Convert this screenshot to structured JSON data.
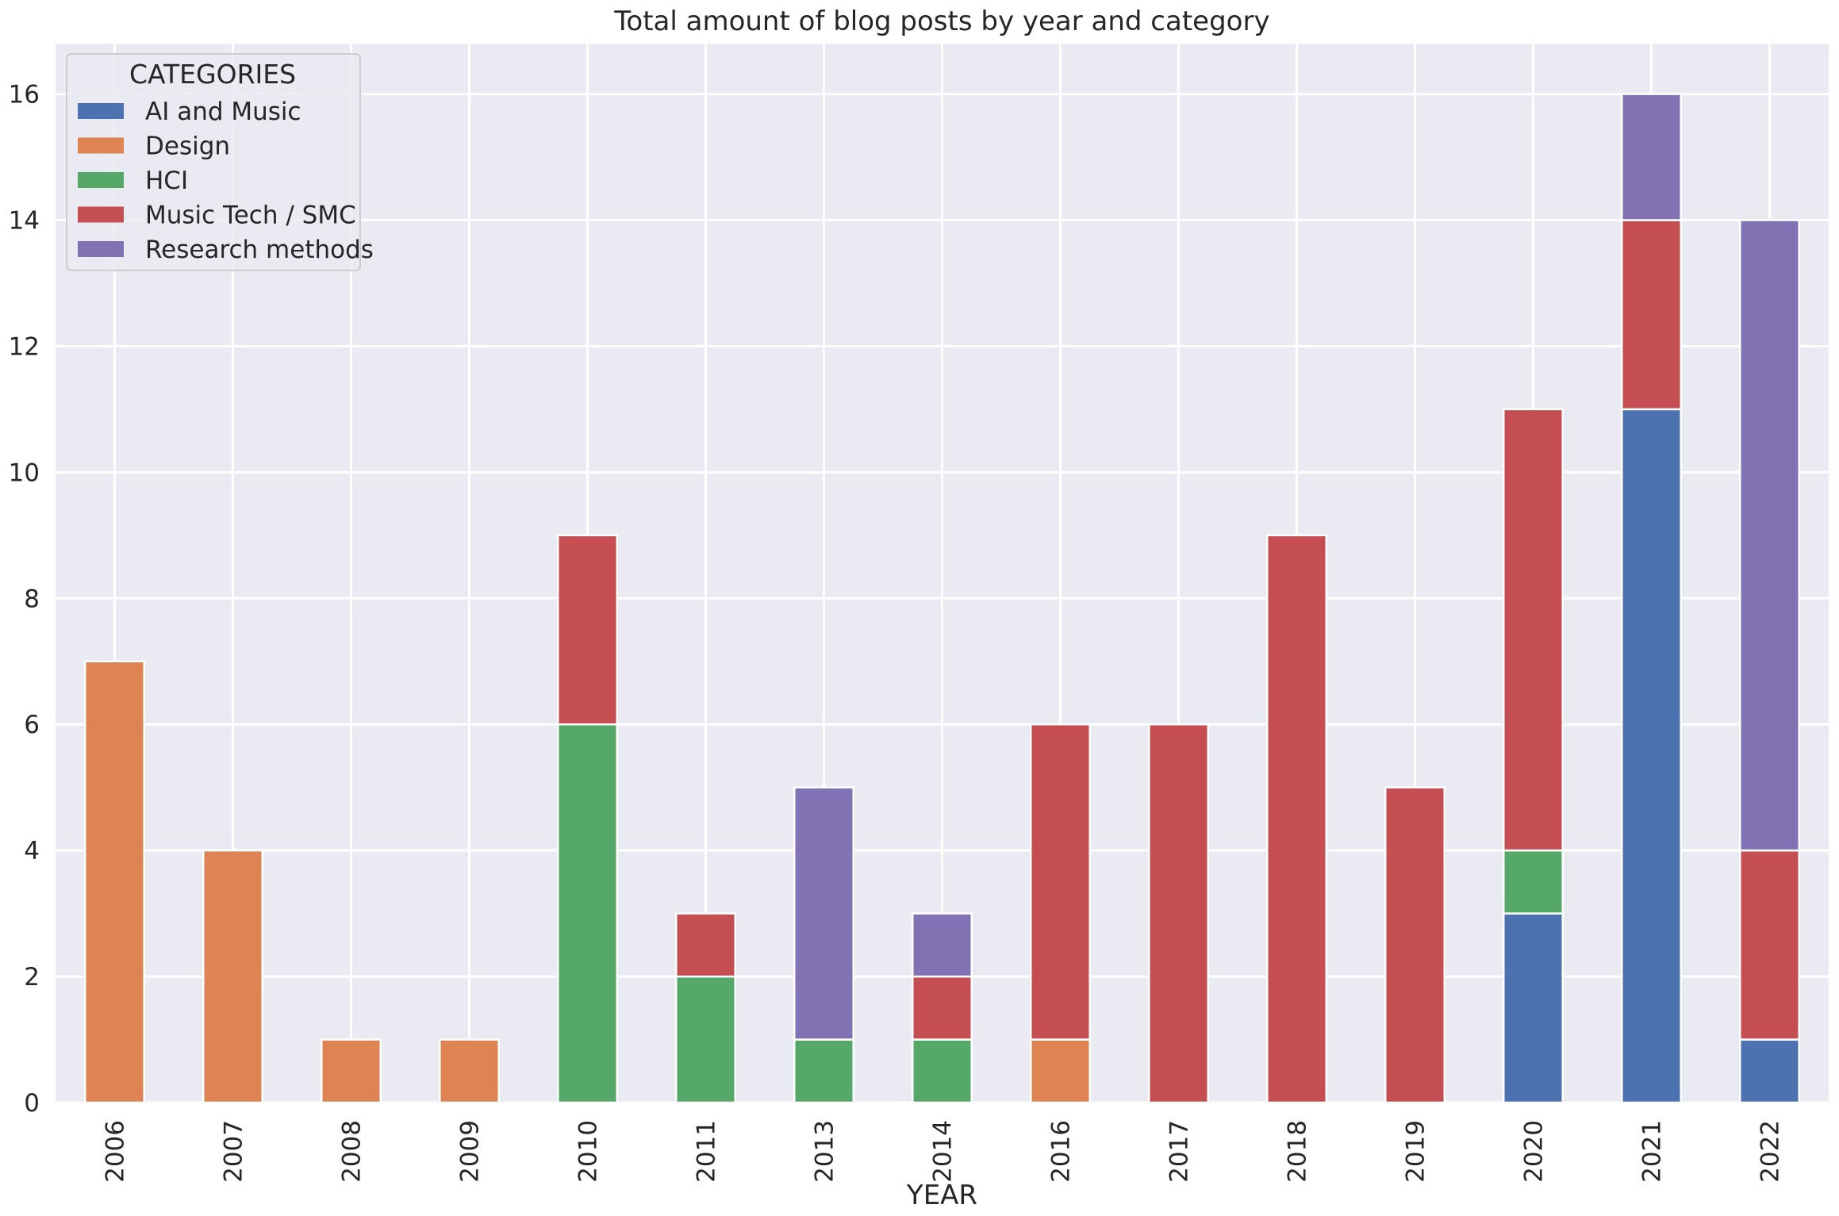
{
  "chart_data": {
    "type": "bar",
    "stacked": true,
    "title": "Total amount of blog posts by year and category",
    "xlabel": "YEAR",
    "ylabel": "",
    "ylim": [
      0,
      16.8
    ],
    "yticks": [
      0,
      2,
      4,
      6,
      8,
      10,
      12,
      14,
      16
    ],
    "grid": true,
    "legend": {
      "title": "CATEGORIES",
      "placement": "top-left"
    },
    "categories": [
      "2006",
      "2007",
      "2008",
      "2009",
      "2010",
      "2011",
      "2013",
      "2014",
      "2016",
      "2017",
      "2018",
      "2019",
      "2020",
      "2021",
      "2022"
    ],
    "series": [
      {
        "name": "AI and Music",
        "color": "#4c72b0",
        "values": [
          0,
          0,
          0,
          0,
          0,
          0,
          0,
          0,
          0,
          0,
          0,
          0,
          3,
          11,
          1
        ]
      },
      {
        "name": "Design",
        "color": "#dd8452",
        "values": [
          7,
          4,
          1,
          1,
          0,
          0,
          0,
          0,
          1,
          0,
          0,
          0,
          0,
          0,
          0
        ]
      },
      {
        "name": "HCI",
        "color": "#55a868",
        "values": [
          0,
          0,
          0,
          0,
          6,
          2,
          1,
          1,
          0,
          0,
          0,
          0,
          1,
          0,
          0
        ]
      },
      {
        "name": "Music Tech / SMC",
        "color": "#c44e52",
        "values": [
          0,
          0,
          0,
          0,
          3,
          1,
          0,
          1,
          5,
          6,
          9,
          5,
          7,
          3,
          3
        ]
      },
      {
        "name": "Research methods",
        "color": "#8172b3",
        "values": [
          0,
          0,
          0,
          0,
          0,
          0,
          4,
          1,
          0,
          0,
          0,
          0,
          0,
          2,
          10
        ]
      }
    ]
  }
}
